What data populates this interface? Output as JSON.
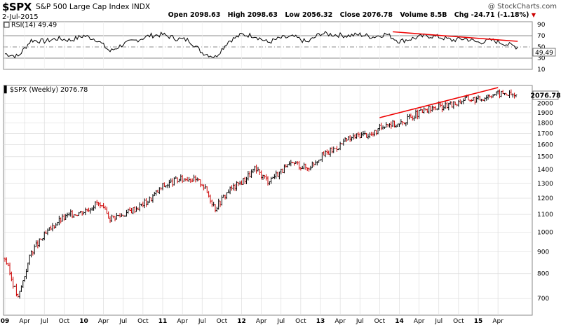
{
  "header": {
    "symbol": "$SPX",
    "name": "S&P 500 Large Cap Index",
    "exchange": "INDX",
    "date": "2-Jul-2015",
    "brand": "@ StockCharts.com",
    "open_label": "Open",
    "open": "2098.63",
    "high_label": "High",
    "high": "2098.63",
    "low_label": "Low",
    "low": "2056.32",
    "close_label": "Close",
    "close": "2076.78",
    "volume_label": "Volume",
    "volume": "8.5B",
    "chg_label": "Chg",
    "chg": "-24.71 (-1.18%)",
    "chg_marker": "▼"
  },
  "colors": {
    "up_bar": "#000000",
    "down_bar": "#cc0000",
    "trendline": "#ee0000",
    "rsi_line": "#000000",
    "grid": "#dddddd"
  },
  "chart_data": [
    {
      "type": "line",
      "panel": "rsi",
      "legend": "RSI(14) 49.49",
      "series": [
        {
          "name": "RSI(14)",
          "last": 49.49
        }
      ],
      "y_ticks": [
        10,
        30,
        50,
        70,
        90
      ],
      "reference_lines": [
        30,
        50,
        70
      ],
      "last_value_label": "49.49",
      "ylim": [
        10,
        95
      ],
      "x": [
        "2009-01",
        "2009-03",
        "2009-05",
        "2009-07",
        "2009-09",
        "2009-11",
        "2010-01",
        "2010-03",
        "2010-05",
        "2010-07",
        "2010-09",
        "2010-11",
        "2011-01",
        "2011-03",
        "2011-05",
        "2011-07",
        "2011-09",
        "2011-11",
        "2012-01",
        "2012-03",
        "2012-05",
        "2012-07",
        "2012-09",
        "2012-11",
        "2013-01",
        "2013-03",
        "2013-05",
        "2013-07",
        "2013-09",
        "2013-11",
        "2014-01",
        "2014-03",
        "2014-05",
        "2014-07",
        "2014-09",
        "2014-11",
        "2015-01",
        "2015-03",
        "2015-05",
        "2015-07"
      ],
      "values": [
        38,
        33,
        62,
        60,
        65,
        62,
        70,
        63,
        42,
        55,
        62,
        70,
        72,
        65,
        62,
        40,
        32,
        60,
        72,
        70,
        58,
        66,
        68,
        58,
        74,
        72,
        70,
        72,
        68,
        73,
        60,
        65,
        70,
        68,
        62,
        65,
        58,
        62,
        56,
        49.5
      ],
      "trendlines": [
        {
          "from": [
            "2013-12",
            77
          ],
          "to": [
            "2015-07",
            60
          ],
          "color": "#ee0000"
        }
      ]
    },
    {
      "type": "bar",
      "panel": "price",
      "style": "ohlc",
      "legend": "$SPX (Weekly) 2076.78",
      "scale": "log",
      "y_ticks": [
        700,
        800,
        900,
        1000,
        1100,
        1200,
        1300,
        1400,
        1500,
        1600,
        1700,
        1800,
        1900,
        2000
      ],
      "last_value_label": "2076.78",
      "ylim": [
        640,
        2200
      ],
      "x_tick_labels": [
        "09",
        "Apr",
        "Jul",
        "Oct",
        "10",
        "Apr",
        "Jul",
        "Oct",
        "11",
        "Apr",
        "Jul",
        "Oct",
        "12",
        "Apr",
        "Jul",
        "Oct",
        "13",
        "Apr",
        "Jul",
        "Oct",
        "14",
        "Apr",
        "Jul",
        "Oct",
        "15",
        "Apr"
      ],
      "x": [
        "2009-01",
        "2009-03",
        "2009-05",
        "2009-07",
        "2009-09",
        "2009-11",
        "2010-01",
        "2010-03",
        "2010-05",
        "2010-07",
        "2010-09",
        "2010-11",
        "2011-01",
        "2011-03",
        "2011-05",
        "2011-07",
        "2011-09",
        "2011-11",
        "2012-01",
        "2012-03",
        "2012-05",
        "2012-07",
        "2012-09",
        "2012-11",
        "2013-01",
        "2013-03",
        "2013-05",
        "2013-07",
        "2013-09",
        "2013-11",
        "2014-01",
        "2014-03",
        "2014-05",
        "2014-07",
        "2014-09",
        "2014-11",
        "2015-01",
        "2015-03",
        "2015-05",
        "2015-07"
      ],
      "values": [
        870,
        700,
        900,
        980,
        1060,
        1100,
        1120,
        1170,
        1080,
        1100,
        1140,
        1190,
        1280,
        1320,
        1340,
        1300,
        1140,
        1250,
        1310,
        1400,
        1320,
        1390,
        1450,
        1410,
        1500,
        1560,
        1640,
        1690,
        1690,
        1800,
        1780,
        1870,
        1920,
        1960,
        1980,
        2050,
        2040,
        2100,
        2110,
        2076.78
      ],
      "trendlines": [
        {
          "from": [
            "2013-10",
            1850
          ],
          "to": [
            "2015-04",
            2175
          ],
          "color": "#ee0000"
        }
      ]
    }
  ]
}
